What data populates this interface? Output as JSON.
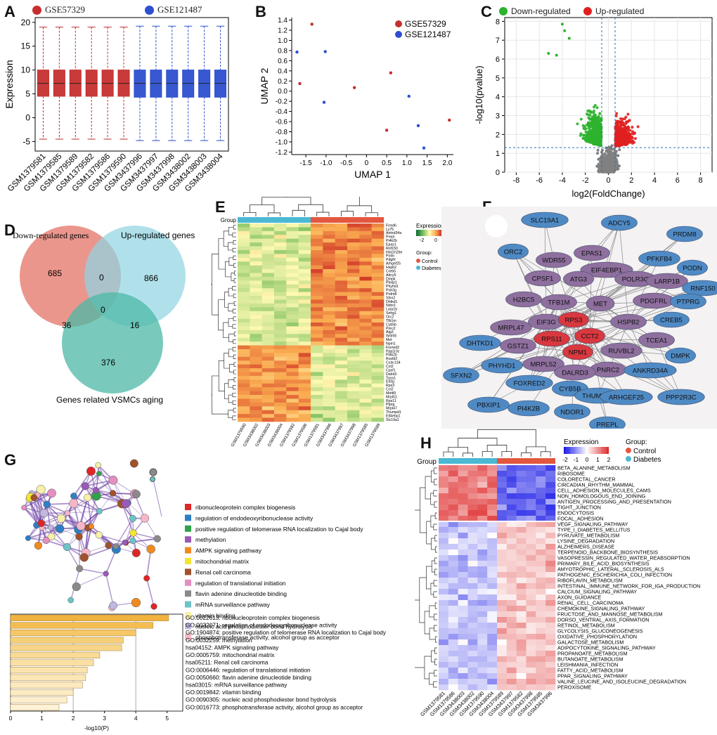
{
  "colors": {
    "red": "#c62f2f",
    "blue": "#2d4fcf",
    "up": "#e02020",
    "down": "#2db22d",
    "grey": "#808080",
    "venn_down": "#e88479",
    "venn_up": "#8fd4e3",
    "venn_aging": "#4cb8a6",
    "ctrl": "#e3573f",
    "diab": "#4bb8d4"
  },
  "panelA": {
    "label": "A",
    "legend": [
      "GSE57329",
      "GSE121487"
    ],
    "ylabel": "Expression",
    "yticks": [
      "20",
      "15",
      "10",
      "5",
      "0",
      "-5"
    ],
    "samples": [
      "GSM1379581",
      "GSM1379585",
      "GSM1379589",
      "GSM1379582",
      "GSM1379586",
      "GSM1379590",
      "GSM3437996",
      "GSM3437997",
      "GSM3437998",
      "GSM3438002",
      "GSM3438003",
      "GSM3438004"
    ]
  },
  "panelB": {
    "label": "B",
    "legend": [
      "GSE57329",
      "GSE121487"
    ],
    "xlabel": "UMAP 1",
    "ylabel": "UMAP 2",
    "xticks": [
      "-1.5",
      "-1.0",
      "-0.5",
      "0",
      "0.5",
      "1.0",
      "1.5",
      "2.0"
    ],
    "yticks": [
      "1.4",
      "1.2",
      "1.0",
      "0.8",
      "0.6",
      "0.4",
      "0.2",
      "0.0",
      "-0.2",
      "-0.4",
      "-0.6",
      "-0.8",
      "-1.0",
      "-1.2"
    ]
  },
  "panelC": {
    "label": "C",
    "legend": [
      "Down-regulated",
      "Up-regulated"
    ],
    "xlabel": "log2(FoldChange)",
    "ylabel": "-log10(pvalue)",
    "xticks": [
      "-8",
      "-6",
      "-4",
      "-2",
      "0",
      "2",
      "4",
      "6",
      "8"
    ],
    "yticks": [
      "8",
      "7",
      "6",
      "5",
      "4",
      "3",
      "2",
      "1",
      "0"
    ]
  },
  "panelD": {
    "label": "D",
    "sets": [
      "Down-regulated genes",
      "Up-regulated genes",
      "Genes related VSMCs aging"
    ],
    "counts": {
      "down_only": "685",
      "down_up": "0",
      "up_only": "866",
      "all": "0",
      "down_aging": "36",
      "up_aging": "16",
      "aging_only": "376"
    }
  },
  "panelE": {
    "label": "E",
    "group_label": "Group",
    "legend_title": "Expression",
    "legend_ticks": [
      "-2",
      "0"
    ],
    "group_title": "Group:",
    "groups": [
      "Control",
      "Diabetes"
    ],
    "genes": [
      "Frmd6",
      "Ly75",
      "Ankrd34a",
      "Prepl",
      "Pi4k2b",
      "Epas1",
      "Rnf150",
      "Hist1h2be",
      "Podn",
      "Pdgfrl",
      "Arhgef25",
      "Hspb2",
      "Creb5",
      "Adcy5",
      "Dmpk",
      "Pbxip1",
      "Phyhd1",
      "Polr3g",
      "Prdm8",
      "Sfxn2",
      "Dhtkd1",
      "Ndor1",
      "Larp1b",
      "Snhg1",
      "Orc2",
      "Tfb1m",
      "Cyb5b",
      "Pnrc2",
      "Atg3",
      "Wdr55",
      "Met",
      "Npm1",
      "Foxred2",
      "Ppp2r3c",
      "Pi4k2b",
      "Ruvbl2",
      "Ccdc134",
      "Cct2",
      "Cpsf1",
      "Dalrd3",
      "Tcea1",
      "Eif3g",
      "Rps3",
      "Cct2",
      "Mettl9",
      "Mrpl52",
      "Rps11",
      "Ptprg",
      "Mrpl47",
      "Thumpd1",
      "Eif4ebp1",
      "Slc19a1"
    ],
    "samples": [
      "GSM1379590",
      "GSM3438002",
      "GSM3438003",
      "GSM3438004",
      "GSM1379582",
      "GSM1379586",
      "GSM1379581",
      "GSM3437996",
      "GSM3437997",
      "GSM3437998",
      "GSM1379585",
      "GSM1379589"
    ]
  },
  "panelF": {
    "label": "F",
    "nodes": [
      "SLC19A1",
      "ADCY5",
      "PRDM8",
      "ORC2",
      "WDR55",
      "EPAS1",
      "PFKFB4",
      "PODN",
      "EIF4EBP1",
      "CPSF1",
      "ATG3",
      "POLR3G",
      "LARP1B",
      "RNF150",
      "H2BC5",
      "TFB1M",
      "MET",
      "PDGFRL",
      "PTPRG",
      "MRPL47",
      "EIF3G",
      "RPS3",
      "HSPB2",
      "CREB5",
      "RPS11",
      "CCT2",
      "TCEA1",
      "DHTKD1",
      "GSTZ1",
      "NPM1",
      "RUVBL2",
      "DMPK",
      "MRPL52",
      "PNRC2",
      "DALRD3",
      "ANKRD34A",
      "PHYHD1",
      "FOXRED2",
      "CYB5B",
      "SFXN2",
      "THUMPD1",
      "ARHGEF25",
      "PPP2R3C",
      "PBXIP1",
      "PI4K2B",
      "NDOR1",
      "PREPL"
    ]
  },
  "panelG": {
    "label": "G",
    "terms": [
      {
        "name": "ribonucleoprotein complex biogenesis",
        "color": "#e02525"
      },
      {
        "name": "regulation of endodeoxyribonuclease activity",
        "color": "#2e7fc4"
      },
      {
        "name": "positive regulation of telomerase RNA localization to Cajal body",
        "color": "#2fa34a"
      },
      {
        "name": "methylation",
        "color": "#9a59b8"
      },
      {
        "name": "AMPK signaling pathway",
        "color": "#f08a1f"
      },
      {
        "name": "mitochondrial matrix",
        "color": "#f5e431"
      },
      {
        "name": "Renal cell carcinoma",
        "color": "#a0522d"
      },
      {
        "name": "regulation of translational initiation",
        "color": "#e58fc1"
      },
      {
        "name": "flavin adenine dinucleotide binding",
        "color": "#8a8a8a"
      },
      {
        "name": "mRNA surveillance pathway",
        "color": "#6cc3c8"
      },
      {
        "name": "vitamin binding",
        "color": "#f6f0a8"
      },
      {
        "name": "nucleic acid phosphodiester bond hydrolysis",
        "color": "#c2b7e0"
      },
      {
        "name": "phosphotransferase activity, alcohol group as acceptor",
        "color": "#f7b6c7"
      }
    ],
    "bars": [
      {
        "label": "GO:0022613: ribonucleoprotein complex biogenesis",
        "value": 5.05
      },
      {
        "label": "GO:0032071: regulation of endodeoxyribonuclease activity",
        "value": 4.55
      },
      {
        "label": "GO:1904874: positive regulation of telomerase RNA localization to Cajal body",
        "value": 4.0
      },
      {
        "label": "GO:0032259: methylation",
        "value": 3.6
      },
      {
        "label": "hsa04152: AMPK signaling pathway",
        "value": 3.55
      },
      {
        "label": "GO:0005759: mitochondrial matrix",
        "value": 2.85
      },
      {
        "label": "hsa05211: Renal cell carcinoma",
        "value": 2.65
      },
      {
        "label": "GO:0006446: regulation of translational initiation",
        "value": 2.45
      },
      {
        "label": "GO:0050660: flavin adenine dinucleotide binding",
        "value": 2.4
      },
      {
        "label": "hsa03015: mRNA surveillance pathway",
        "value": 2.3
      },
      {
        "label": "GO:0019842: vitamin binding",
        "value": 2.0
      },
      {
        "label": "GO:0090305: nucleic acid phosphodiester bond hydrolysis",
        "value": 1.8
      },
      {
        "label": "GO:0016773: phosphotransferase activity, alcohol group as acceptor",
        "value": 1.55
      }
    ],
    "xlabel": "-log10(P)",
    "xticks": [
      "0",
      "1",
      "2",
      "3",
      "4",
      "5"
    ]
  },
  "panelH": {
    "label": "H",
    "group_label": "Group",
    "legend_title": "Expression",
    "legend_ticks": [
      "-2",
      "-1",
      "0",
      "1",
      "2"
    ],
    "group_title": "Group:",
    "groups": [
      "Control",
      "Diabetes"
    ],
    "pathways": [
      "BETA_ALANINE_METABOLISM",
      "RIBOSOME",
      "COLORECTAL_CANCER",
      "CIRCADIAN_RHYTHM_MAMMAL",
      "CELL_ADHESION_MOLECULES_CAMS",
      "NON_HOMOLOGOUS_END_JOINING",
      "ANTIGEN_PROCESSING_AND_PRESENTATION",
      "TIGHT_JUNCTION",
      "ENDOCYTOSIS",
      "FOCAL_ADHESION",
      "VEGF_SIGNALING_PATHWAY",
      "TYPE_I_DIABETES_MELLITUS",
      "PYRUVATE_METABOLISM",
      "LYSINE_DEGRADATION",
      "ALZHEIMERS_DISEASE",
      "TERPENOID_BACKBONE_BIOSYNTHESIS",
      "VASOPRESSIN_REGULATED_WATER_REABSORPTION",
      "PRIMARY_BILE_ACID_BIOSYNTHESIS",
      "AMYOTROPHIC_LATERAL_SCLEROSIS_ALS",
      "PATHOGENIC_ESCHERICHIA_COLI_INFECTION",
      "RIBOFLAVIN_METABOLISM",
      "INTESTINAL_IMMUNE_NETWORK_FOR_IGA_PRODUCTION",
      "CALCIUM_SIGNALING_PATHWAY",
      "AXON_GUIDANCE",
      "RENAL_CELL_CARCINOMA",
      "CHEMOKINE_SIGNALING_PATHWAY",
      "FRUCTOSE_AND_MANNOSE_METABOLISM",
      "DORSO_VENTRAL_AXIS_FORMATION",
      "RETINOL_METABOLISM",
      "GLYCOLYSIS_GLUCONEOGENESIS",
      "OXIDATIVE_PHOSPHORYLATION",
      "GALACTOSE_METABOLISM",
      "ADIPOCYTOKINE_SIGNALING_PATHWAY",
      "PROPANOATE_METABOLISM",
      "BUTANOATE_METABOLISM",
      "LEISHMANIA_INFECTION",
      "FATTY_ACID_METABOLISM",
      "PPAR_SIGNALING_PATHWAY",
      "VALINE_LEUCINE_AND_ISOLEUCINE_DEGRADATION",
      "PEROXISOME"
    ],
    "samples": [
      "GSM1379581",
      "GSM1379586",
      "GSM3438003",
      "GSM3438002",
      "GSM1379590",
      "GSM3438004",
      "GSM1379589",
      "GSM3437997",
      "GSM1379582",
      "GSM3437998",
      "GSM1379585",
      "GSM3437996"
    ]
  },
  "chart_data": [
    {
      "type": "box",
      "title": "A",
      "ylabel": "Expression",
      "ylim": [
        -7,
        21
      ],
      "categories": [
        "GSM1379581",
        "GSM1379585",
        "GSM1379589",
        "GSM1379582",
        "GSM1379586",
        "GSM1379590",
        "GSM3437996",
        "GSM3437997",
        "GSM3437998",
        "GSM3438002",
        "GSM3438003",
        "GSM3438004"
      ],
      "series": [
        {
          "name": "GSE57329",
          "q1": 4.5,
          "median": 7.2,
          "q3": 10.0,
          "min": -4.5,
          "max": 19.0
        },
        {
          "name": "GSE121487",
          "q1": 4.3,
          "median": 7.2,
          "q3": 10.0,
          "min": -4.8,
          "max": 19.2
        }
      ]
    },
    {
      "type": "scatter",
      "title": "B",
      "xlabel": "UMAP 1",
      "ylabel": "UMAP 2",
      "xlim": [
        -1.85,
        2.15
      ],
      "ylim": [
        -1.25,
        1.45
      ],
      "series": [
        {
          "name": "GSE57329",
          "points": [
            [
              -1.35,
              1.32
            ],
            [
              -1.65,
              0.15
            ],
            [
              -0.3,
              0.07
            ],
            [
              0.6,
              0.36
            ],
            [
              0.5,
              -0.77
            ],
            [
              2.05,
              -0.57
            ]
          ]
        },
        {
          "name": "GSE121487",
          "points": [
            [
              -1.72,
              0.77
            ],
            [
              -1.02,
              0.78
            ],
            [
              -1.05,
              -0.22
            ],
            [
              1.05,
              -0.1
            ],
            [
              1.28,
              -0.68
            ],
            [
              1.42,
              -1.12
            ]
          ]
        }
      ]
    },
    {
      "type": "scatter",
      "title": "C",
      "xlabel": "log2(FoldChange)",
      "ylabel": "-log10(pvalue)",
      "xlim": [
        -9,
        9
      ],
      "ylim": [
        0,
        8.2
      ]
    },
    {
      "type": "bar",
      "title": "G",
      "xlabel": "-log10(P)",
      "xlim": [
        0,
        5.5
      ]
    }
  ]
}
